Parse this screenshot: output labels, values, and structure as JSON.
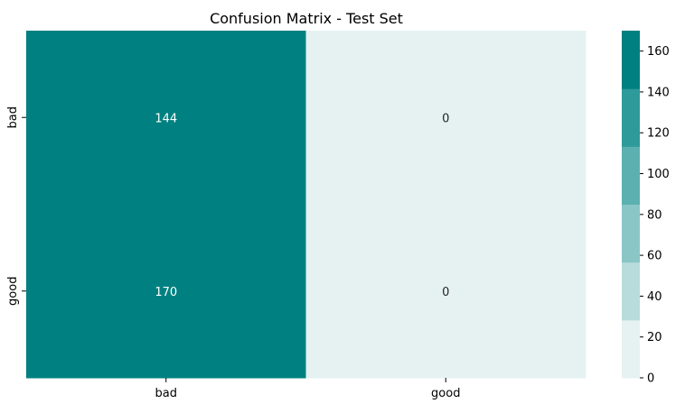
{
  "chart_data": {
    "type": "heatmap",
    "title": "Confusion Matrix - Test Set",
    "xlabel": "",
    "ylabel": "",
    "x_categories": [
      "bad",
      "good"
    ],
    "y_categories": [
      "bad",
      "good"
    ],
    "values": [
      [
        144,
        0
      ],
      [
        170,
        0
      ]
    ],
    "colorbar": {
      "ticks": [
        0,
        20,
        40,
        60,
        80,
        100,
        120,
        140,
        160
      ],
      "range": [
        0,
        170
      ],
      "levels": 6,
      "colors": [
        "#e6f2f2",
        "#b8dcdc",
        "#8ac6c6",
        "#5cb0b0",
        "#2e9a9a",
        "#008080"
      ],
      "placement": "right"
    },
    "annotation_colors": {
      "dark": "#ffffff",
      "light": "#262626"
    }
  }
}
